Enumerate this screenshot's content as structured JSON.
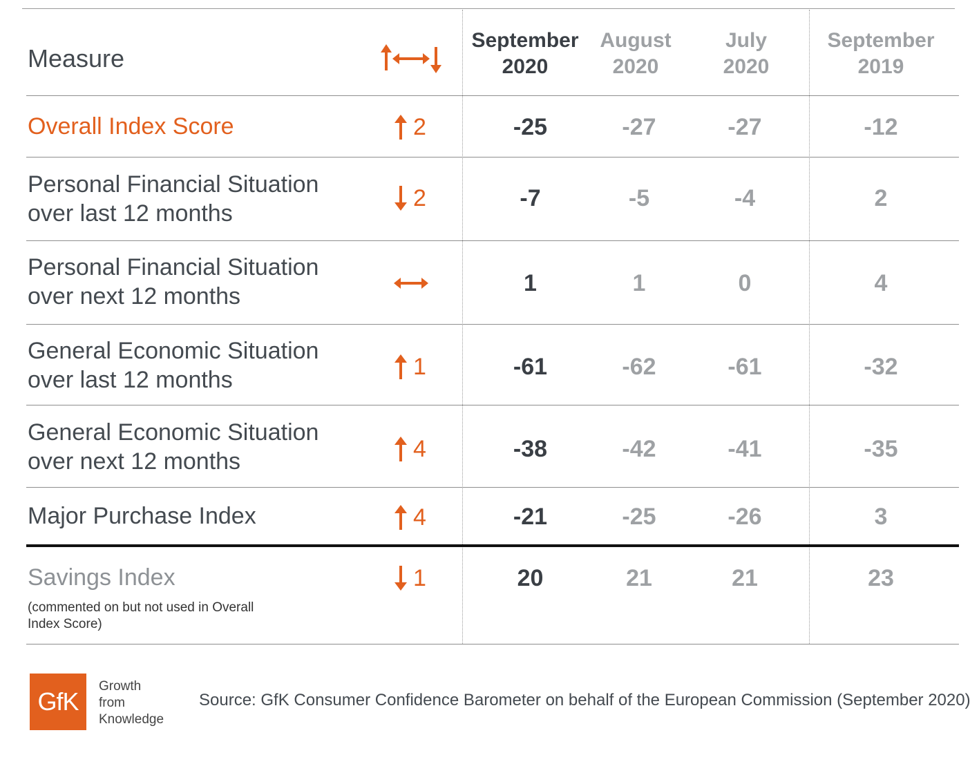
{
  "header": {
    "measure": "Measure",
    "columns": [
      {
        "line1": "September",
        "line2": "2020"
      },
      {
        "line1": "August",
        "line2": "2020"
      },
      {
        "line1": "July",
        "line2": "2020"
      },
      {
        "line1": "September",
        "line2": "2019"
      }
    ]
  },
  "rows": [
    {
      "label1": "Overall Index Score",
      "label2": "",
      "direction": "up",
      "change": "2",
      "values": [
        "-25",
        "-27",
        "-27",
        "-12"
      ]
    },
    {
      "label1": "Personal Financial Situation",
      "label2": "over last 12 months",
      "direction": "down",
      "change": "2",
      "values": [
        "-7",
        "-5",
        "-4",
        "2"
      ]
    },
    {
      "label1": "Personal Financial Situation",
      "label2": "over next 12 months",
      "direction": "flat",
      "change": "",
      "values": [
        "1",
        "1",
        "0",
        "4"
      ]
    },
    {
      "label1": "General Economic Situation",
      "label2": "over last 12 months",
      "direction": "up",
      "change": "1",
      "values": [
        "-61",
        "-62",
        "-61",
        "-32"
      ]
    },
    {
      "label1": "General Economic Situation",
      "label2": "over next 12 months",
      "direction": "up",
      "change": "4",
      "values": [
        "-38",
        "-42",
        "-41",
        "-35"
      ]
    },
    {
      "label1": "Major Purchase Index",
      "label2": "",
      "direction": "up",
      "change": "4",
      "values": [
        "-21",
        "-25",
        "-26",
        "3"
      ]
    }
  ],
  "savings": {
    "label": "Savings Index",
    "note": "(commented on but not used in Overall Index Score)",
    "direction": "down",
    "change": "1",
    "values": [
      "20",
      "21",
      "21",
      "23"
    ]
  },
  "footer": {
    "logo": "GfK",
    "tagline": [
      "Growth",
      "from",
      "Knowledge"
    ],
    "source": "Source: GfK Consumer Confidence Barometer on behalf of the European Commission (September 2020)"
  },
  "colors": {
    "accent": "#e2601e",
    "current": "#3a3f45",
    "previous": "#9ea1a4"
  }
}
